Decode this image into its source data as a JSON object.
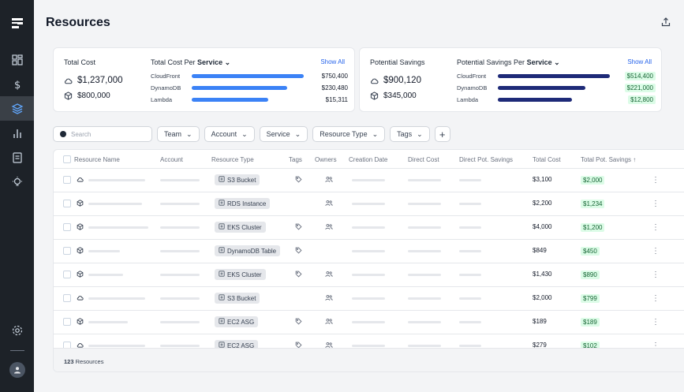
{
  "page": {
    "title": "Resources"
  },
  "sidebar": {
    "items": [
      {
        "icon": "dashboard-icon"
      },
      {
        "icon": "dollar-icon"
      },
      {
        "icon": "layers-icon",
        "active": true
      },
      {
        "icon": "bar-chart-icon"
      },
      {
        "icon": "document-icon"
      },
      {
        "icon": "lightbulb-icon"
      }
    ]
  },
  "total_cost": {
    "title": "Total Cost",
    "primary": "$1,237,000",
    "secondary": "$800,000",
    "per_label": "Total Cost Per",
    "per_dim": "Service",
    "show_all": "Show All",
    "rows": [
      {
        "label": "CloudFront",
        "value": "$750,400",
        "fraction": 1.0
      },
      {
        "label": "DynamoDB",
        "value": "$230,480",
        "fraction": 0.85
      },
      {
        "label": "Lambda",
        "value": "$15,311",
        "fraction": 0.68
      }
    ],
    "bar_color": "#3b82f6"
  },
  "potential_savings": {
    "title": "Potential Savings",
    "primary": "$900,120",
    "secondary": "$345,000",
    "per_label": "Potential Savings Per",
    "per_dim": "Service",
    "show_all": "Show All",
    "rows": [
      {
        "label": "CloudFront",
        "value": "$514,400",
        "fraction": 1.0
      },
      {
        "label": "DynamoDB",
        "value": "$221,000",
        "fraction": 0.78
      },
      {
        "label": "Lambda",
        "value": "$12,800",
        "fraction": 0.66
      }
    ],
    "bar_color": "#1e2a78"
  },
  "filters": {
    "search_placeholder": "Search",
    "buttons": [
      "Team",
      "Account",
      "Service",
      "Resource Type",
      "Tags"
    ],
    "add": "+"
  },
  "table": {
    "headers": [
      "Resource Name",
      "Account",
      "Resource Type",
      "Tags",
      "Owners",
      "Creation Date",
      "Direct Cost",
      "Direct Pot. Savings",
      "Total Cost",
      "Total Pot. Savings ↑"
    ],
    "rows": [
      {
        "icon": "cloud-icon",
        "type": "S3 Bucket",
        "tags": true,
        "owners": true,
        "total_cost": "$3,100",
        "savings": "$2,000"
      },
      {
        "icon": "cube-icon",
        "type": "RDS Instance",
        "tags": false,
        "owners": true,
        "total_cost": "$2,200",
        "savings": "$1,234"
      },
      {
        "icon": "cube-icon",
        "type": "EKS Cluster",
        "tags": true,
        "owners": true,
        "total_cost": "$4,000",
        "savings": "$1,200"
      },
      {
        "icon": "cube-icon",
        "type": "DynamoDB Table",
        "tags": true,
        "owners": false,
        "total_cost": "$849",
        "savings": "$450"
      },
      {
        "icon": "cube-icon",
        "type": "EKS Cluster",
        "tags": true,
        "owners": true,
        "total_cost": "$1,430",
        "savings": "$890"
      },
      {
        "icon": "cloud-icon",
        "type": "S3 Bucket",
        "tags": false,
        "owners": true,
        "total_cost": "$2,000",
        "savings": "$799"
      },
      {
        "icon": "cube-icon",
        "type": "EC2 ASG",
        "tags": true,
        "owners": true,
        "total_cost": "$189",
        "savings": "$189"
      },
      {
        "icon": "cloud-icon",
        "type": "EC2 ASG",
        "tags": true,
        "owners": true,
        "total_cost": "$279",
        "savings": "$102"
      }
    ],
    "footer_count": "123",
    "footer_label": "Resources"
  }
}
